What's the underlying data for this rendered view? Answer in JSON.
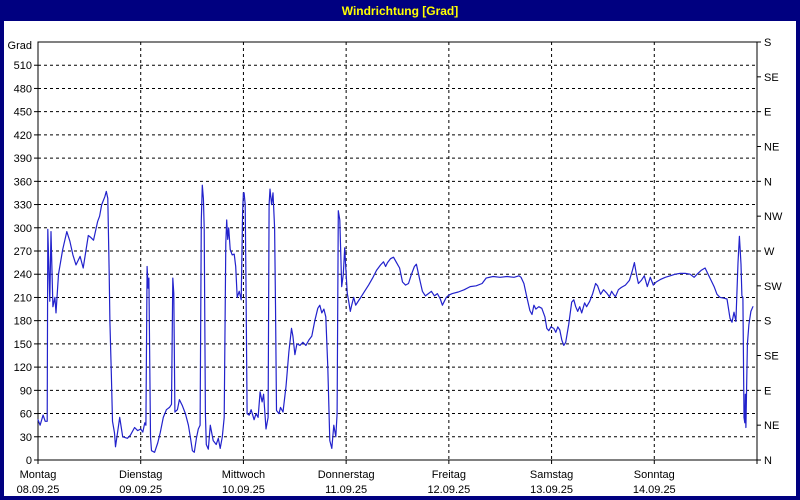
{
  "window": {
    "title": "Windrichtung [Grad]"
  },
  "colors": {
    "frame": "#000080",
    "title_text": "#ffff00",
    "background": "#ffffff",
    "line": "#2222cc",
    "grid": "#000000",
    "text": "#000000"
  },
  "chart_data": {
    "type": "line",
    "title": "Windrichtung [Grad]",
    "grid": "dashed",
    "y_axis_left": {
      "label": "Grad",
      "min": 0,
      "max": 540,
      "tick_step": 30,
      "ticks": [
        0,
        30,
        60,
        90,
        120,
        150,
        180,
        210,
        240,
        270,
        300,
        330,
        360,
        390,
        420,
        450,
        480,
        510
      ]
    },
    "y_axis_right": {
      "tick_step_deg": 45,
      "ticks_bottom_to_top": [
        "N",
        "NE",
        "E",
        "SE",
        "S",
        "SW",
        "W",
        "NW",
        "N",
        "NE",
        "E",
        "SE",
        "S"
      ]
    },
    "x_axis": {
      "days": [
        {
          "name": "Montag",
          "date": "08.09.25"
        },
        {
          "name": "Dienstag",
          "date": "09.09.25"
        },
        {
          "name": "Mittwoch",
          "date": "10.09.25"
        },
        {
          "name": "Donnerstag",
          "date": "11.09.25"
        },
        {
          "name": "Freitag",
          "date": "12.09.25"
        },
        {
          "name": "Samstag",
          "date": "13.09.25"
        },
        {
          "name": "Sonntag",
          "date": "14.09.25"
        }
      ]
    },
    "series": [
      {
        "name": "Windrichtung",
        "unit": "Grad",
        "points": [
          [
            0.0,
            52
          ],
          [
            0.02,
            45
          ],
          [
            0.05,
            58
          ],
          [
            0.07,
            50
          ],
          [
            0.09,
            50
          ],
          [
            0.095,
            298
          ],
          [
            0.115,
            205
          ],
          [
            0.127,
            295
          ],
          [
            0.145,
            198
          ],
          [
            0.165,
            210
          ],
          [
            0.175,
            190
          ],
          [
            0.2,
            240
          ],
          [
            0.24,
            272
          ],
          [
            0.28,
            295
          ],
          [
            0.31,
            283
          ],
          [
            0.34,
            265
          ],
          [
            0.37,
            252
          ],
          [
            0.41,
            263
          ],
          [
            0.44,
            248
          ],
          [
            0.49,
            290
          ],
          [
            0.51,
            288
          ],
          [
            0.54,
            284
          ],
          [
            0.58,
            308
          ],
          [
            0.6,
            315
          ],
          [
            0.62,
            330
          ],
          [
            0.65,
            340
          ],
          [
            0.665,
            347
          ],
          [
            0.68,
            338
          ],
          [
            0.693,
            240
          ],
          [
            0.7,
            179
          ],
          [
            0.715,
            108
          ],
          [
            0.725,
            50
          ],
          [
            0.745,
            35
          ],
          [
            0.755,
            17
          ],
          [
            0.795,
            55
          ],
          [
            0.825,
            30
          ],
          [
            0.87,
            28
          ],
          [
            0.9,
            32
          ],
          [
            0.94,
            42
          ],
          [
            0.97,
            38
          ],
          [
            1.0,
            40
          ],
          [
            1.02,
            36
          ],
          [
            1.04,
            48
          ],
          [
            1.05,
            45
          ],
          [
            1.062,
            250
          ],
          [
            1.072,
            222
          ],
          [
            1.08,
            235
          ],
          [
            1.095,
            30
          ],
          [
            1.105,
            12
          ],
          [
            1.135,
            10
          ],
          [
            1.165,
            22
          ],
          [
            1.19,
            35
          ],
          [
            1.22,
            55
          ],
          [
            1.25,
            65
          ],
          [
            1.28,
            68
          ],
          [
            1.3,
            72
          ],
          [
            1.312,
            235
          ],
          [
            1.322,
            215
          ],
          [
            1.333,
            62
          ],
          [
            1.357,
            65
          ],
          [
            1.377,
            78
          ],
          [
            1.406,
            70
          ],
          [
            1.435,
            60
          ],
          [
            1.464,
            45
          ],
          [
            1.483,
            30
          ],
          [
            1.503,
            12
          ],
          [
            1.522,
            10
          ],
          [
            1.542,
            28
          ],
          [
            1.561,
            40
          ],
          [
            1.578,
            45
          ],
          [
            1.59,
            310
          ],
          [
            1.6,
            355
          ],
          [
            1.61,
            338
          ],
          [
            1.618,
            300
          ],
          [
            1.63,
            60
          ],
          [
            1.639,
            20
          ],
          [
            1.658,
            14
          ],
          [
            1.677,
            45
          ],
          [
            1.706,
            25
          ],
          [
            1.735,
            20
          ],
          [
            1.755,
            28
          ],
          [
            1.774,
            15
          ],
          [
            1.794,
            30
          ],
          [
            1.813,
            55
          ],
          [
            1.828,
            280
          ],
          [
            1.837,
            310
          ],
          [
            1.847,
            285
          ],
          [
            1.857,
            300
          ],
          [
            1.871,
            272
          ],
          [
            1.891,
            265
          ],
          [
            1.91,
            266
          ],
          [
            1.925,
            250
          ],
          [
            1.939,
            210
          ],
          [
            1.959,
            218
          ],
          [
            1.978,
            207
          ],
          [
            1.992,
            320
          ],
          [
            2.0,
            345
          ],
          [
            2.007,
            345
          ],
          [
            2.017,
            330
          ],
          [
            2.026,
            213
          ],
          [
            2.036,
            60
          ],
          [
            2.056,
            58
          ],
          [
            2.075,
            65
          ],
          [
            2.104,
            52
          ],
          [
            2.123,
            60
          ],
          [
            2.143,
            55
          ],
          [
            2.162,
            88
          ],
          [
            2.182,
            75
          ],
          [
            2.196,
            85
          ],
          [
            2.22,
            40
          ],
          [
            2.24,
            55
          ],
          [
            2.25,
            330
          ],
          [
            2.259,
            350
          ],
          [
            2.274,
            330
          ],
          [
            2.288,
            345
          ],
          [
            2.303,
            300
          ],
          [
            2.312,
            200
          ],
          [
            2.322,
            64
          ],
          [
            2.346,
            60
          ],
          [
            2.361,
            68
          ],
          [
            2.385,
            62
          ],
          [
            2.414,
            95
          ],
          [
            2.443,
            140
          ],
          [
            2.468,
            170
          ],
          [
            2.482,
            160
          ],
          [
            2.501,
            136
          ],
          [
            2.521,
            150
          ],
          [
            2.55,
            148
          ],
          [
            2.579,
            152
          ],
          [
            2.608,
            148
          ],
          [
            2.637,
            155
          ],
          [
            2.666,
            160
          ],
          [
            2.695,
            180
          ],
          [
            2.724,
            196
          ],
          [
            2.744,
            200
          ],
          [
            2.763,
            190
          ],
          [
            2.783,
            195
          ],
          [
            2.802,
            185
          ],
          [
            2.821,
            120
          ],
          [
            2.841,
            25
          ],
          [
            2.86,
            15
          ],
          [
            2.88,
            45
          ],
          [
            2.899,
            30
          ],
          [
            2.912,
            60
          ],
          [
            2.924,
            322
          ],
          [
            2.938,
            310
          ],
          [
            2.957,
            224
          ],
          [
            2.972,
            240
          ],
          [
            2.986,
            274
          ],
          [
            2.996,
            250
          ],
          [
            3.011,
            215
          ],
          [
            3.025,
            205
          ],
          [
            3.04,
            192
          ],
          [
            3.054,
            200
          ],
          [
            3.074,
            210
          ],
          [
            3.093,
            200
          ],
          [
            3.122,
            206
          ],
          [
            3.151,
            212
          ],
          [
            3.18,
            218
          ],
          [
            3.219,
            226
          ],
          [
            3.258,
            235
          ],
          [
            3.296,
            245
          ],
          [
            3.335,
            252
          ],
          [
            3.364,
            256
          ],
          [
            3.384,
            250
          ],
          [
            3.403,
            255
          ],
          [
            3.432,
            260
          ],
          [
            3.461,
            262
          ],
          [
            3.49,
            255
          ],
          [
            3.52,
            248
          ],
          [
            3.549,
            230
          ],
          [
            3.578,
            226
          ],
          [
            3.607,
            228
          ],
          [
            3.636,
            240
          ],
          [
            3.665,
            250
          ],
          [
            3.684,
            253
          ],
          [
            3.713,
            235
          ],
          [
            3.742,
            218
          ],
          [
            3.772,
            212
          ],
          [
            3.801,
            215
          ],
          [
            3.83,
            218
          ],
          [
            3.859,
            212
          ],
          [
            3.888,
            215
          ],
          [
            3.917,
            208
          ],
          [
            3.937,
            200
          ],
          [
            3.956,
            205
          ],
          [
            3.975,
            210
          ],
          [
            4.0,
            213
          ],
          [
            4.034,
            215
          ],
          [
            4.092,
            217
          ],
          [
            4.15,
            220
          ],
          [
            4.208,
            224
          ],
          [
            4.266,
            225
          ],
          [
            4.324,
            228
          ],
          [
            4.363,
            235
          ],
          [
            4.431,
            237
          ],
          [
            4.499,
            236
          ],
          [
            4.567,
            237
          ],
          [
            4.634,
            236
          ],
          [
            4.683,
            238
          ],
          [
            4.702,
            236
          ],
          [
            4.731,
            228
          ],
          [
            4.76,
            210
          ],
          [
            4.789,
            193
          ],
          [
            4.809,
            188
          ],
          [
            4.828,
            200
          ],
          [
            4.847,
            195
          ],
          [
            4.876,
            198
          ],
          [
            4.905,
            196
          ],
          [
            4.935,
            185
          ],
          [
            4.954,
            170
          ],
          [
            4.973,
            167
          ],
          [
            4.993,
            172
          ],
          [
            5.022,
            170
          ],
          [
            5.041,
            165
          ],
          [
            5.061,
            172
          ],
          [
            5.08,
            168
          ],
          [
            5.1,
            155
          ],
          [
            5.119,
            148
          ],
          [
            5.138,
            152
          ],
          [
            5.167,
            175
          ],
          [
            5.196,
            204
          ],
          [
            5.216,
            207
          ],
          [
            5.235,
            198
          ],
          [
            5.254,
            192
          ],
          [
            5.274,
            198
          ],
          [
            5.293,
            190
          ],
          [
            5.322,
            203
          ],
          [
            5.341,
            198
          ],
          [
            5.371,
            205
          ],
          [
            5.4,
            215
          ],
          [
            5.429,
            228
          ],
          [
            5.448,
            225
          ],
          [
            5.477,
            214
          ],
          [
            5.506,
            220
          ],
          [
            5.535,
            216
          ],
          [
            5.564,
            211
          ],
          [
            5.584,
            218
          ],
          [
            5.603,
            214
          ],
          [
            5.622,
            211
          ],
          [
            5.651,
            220
          ],
          [
            5.68,
            223
          ],
          [
            5.719,
            226
          ],
          [
            5.758,
            232
          ],
          [
            5.787,
            245
          ],
          [
            5.806,
            255
          ],
          [
            5.826,
            240
          ],
          [
            5.845,
            228
          ],
          [
            5.874,
            232
          ],
          [
            5.903,
            238
          ],
          [
            5.932,
            224
          ],
          [
            5.961,
            236
          ],
          [
            5.99,
            226
          ],
          [
            6.019,
            230
          ],
          [
            6.058,
            233
          ],
          [
            6.107,
            236
          ],
          [
            6.155,
            238
          ],
          [
            6.204,
            240
          ],
          [
            6.252,
            241
          ],
          [
            6.301,
            241
          ],
          [
            6.349,
            240
          ],
          [
            6.388,
            236
          ],
          [
            6.417,
            240
          ],
          [
            6.456,
            245
          ],
          [
            6.495,
            248
          ],
          [
            6.524,
            240
          ],
          [
            6.553,
            232
          ],
          [
            6.582,
            224
          ],
          [
            6.611,
            214
          ],
          [
            6.64,
            210
          ],
          [
            6.679,
            209
          ],
          [
            6.708,
            208
          ],
          [
            6.737,
            183
          ],
          [
            6.757,
            178
          ],
          [
            6.776,
            191
          ],
          [
            6.795,
            179
          ],
          [
            6.815,
            255
          ],
          [
            6.829,
            289
          ],
          [
            6.844,
            253
          ],
          [
            6.853,
            212
          ],
          [
            6.863,
            210
          ],
          [
            6.873,
            55
          ],
          [
            6.881,
            48
          ],
          [
            6.886,
            85
          ],
          [
            6.892,
            42
          ],
          [
            6.907,
            150
          ],
          [
            6.921,
            175
          ],
          [
            6.941,
            192
          ],
          [
            6.96,
            198
          ]
        ]
      }
    ]
  }
}
